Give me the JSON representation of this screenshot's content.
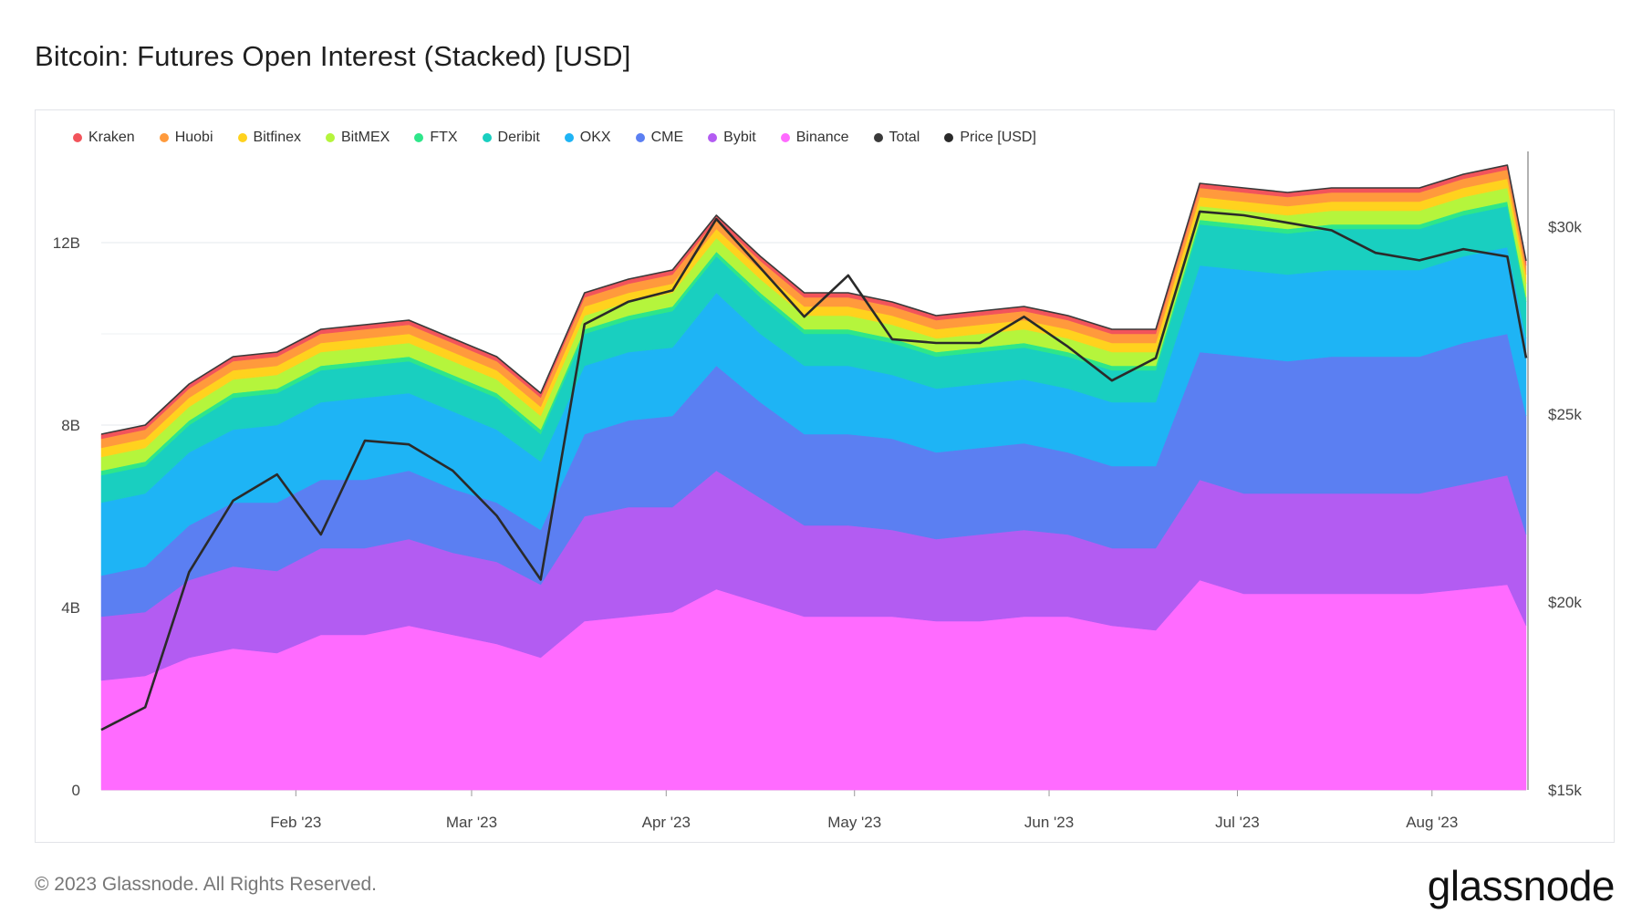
{
  "title": "Bitcoin: Futures Open Interest (Stacked) [USD]",
  "footer": {
    "copyright": "© 2023 Glassnode. All Rights Reserved.",
    "logo": "glassnode",
    "watermark": "glassnode"
  },
  "chart_data": {
    "type": "area",
    "stacked": true,
    "title": "Bitcoin: Futures Open Interest (Stacked) [USD]",
    "legend_position": "top-left",
    "grid": true,
    "x_start": "2023-01-01",
    "x_end": "2023-08-16",
    "x_tick_labels": [
      "Feb '23",
      "Mar '23",
      "Apr '23",
      "May '23",
      "Jun '23",
      "Jul '23",
      "Aug '23"
    ],
    "y_left": {
      "ylim": [
        0,
        14
      ],
      "unit": "B",
      "ticks": [
        0,
        4,
        8,
        12
      ],
      "tick_labels": [
        "0",
        "4B",
        "8B",
        "12B"
      ]
    },
    "y_right": {
      "ylim": [
        15000,
        32000
      ],
      "ticks": [
        15000,
        20000,
        25000,
        30000
      ],
      "tick_labels": [
        "$15k",
        "$20k",
        "$25k",
        "$30k"
      ]
    },
    "dates": [
      "2023-01-01",
      "2023-01-08",
      "2023-01-15",
      "2023-01-22",
      "2023-01-29",
      "2023-02-05",
      "2023-02-12",
      "2023-02-19",
      "2023-02-26",
      "2023-03-05",
      "2023-03-12",
      "2023-03-19",
      "2023-03-26",
      "2023-04-02",
      "2023-04-09",
      "2023-04-16",
      "2023-04-23",
      "2023-04-30",
      "2023-05-07",
      "2023-05-14",
      "2023-05-21",
      "2023-05-28",
      "2023-06-04",
      "2023-06-11",
      "2023-06-18",
      "2023-06-25",
      "2023-07-02",
      "2023-07-09",
      "2023-07-16",
      "2023-07-23",
      "2023-07-30",
      "2023-08-06",
      "2023-08-13",
      "2023-08-16"
    ],
    "series": [
      {
        "name": "Binance",
        "color": "#ff6bff",
        "values": [
          2.4,
          2.5,
          2.9,
          3.1,
          3.0,
          3.4,
          3.4,
          3.6,
          3.4,
          3.2,
          2.9,
          3.7,
          3.8,
          3.9,
          4.4,
          4.1,
          3.8,
          3.8,
          3.8,
          3.7,
          3.7,
          3.8,
          3.8,
          3.6,
          3.5,
          4.6,
          4.3,
          4.3,
          4.3,
          4.3,
          4.3,
          4.4,
          4.5,
          3.6
        ]
      },
      {
        "name": "Bybit",
        "color": "#b35cf2",
        "values": [
          1.4,
          1.4,
          1.7,
          1.8,
          1.8,
          1.9,
          1.9,
          1.9,
          1.8,
          1.8,
          1.6,
          2.3,
          2.4,
          2.3,
          2.6,
          2.3,
          2.0,
          2.0,
          1.9,
          1.8,
          1.9,
          1.9,
          1.8,
          1.7,
          1.8,
          2.2,
          2.2,
          2.2,
          2.2,
          2.2,
          2.2,
          2.3,
          2.4,
          2.0
        ]
      },
      {
        "name": "CME",
        "color": "#5b7ff2",
        "values": [
          0.9,
          1.0,
          1.2,
          1.4,
          1.5,
          1.5,
          1.5,
          1.5,
          1.4,
          1.3,
          1.2,
          1.8,
          1.9,
          2.0,
          2.3,
          2.1,
          2.0,
          2.0,
          2.0,
          1.9,
          1.9,
          1.9,
          1.8,
          1.8,
          1.8,
          2.8,
          3.0,
          2.9,
          3.0,
          3.0,
          3.0,
          3.1,
          3.1,
          2.6
        ]
      },
      {
        "name": "OKX",
        "color": "#1eb4f5",
        "values": [
          1.6,
          1.6,
          1.6,
          1.6,
          1.7,
          1.7,
          1.8,
          1.7,
          1.7,
          1.6,
          1.5,
          1.5,
          1.5,
          1.5,
          1.6,
          1.5,
          1.5,
          1.5,
          1.4,
          1.4,
          1.4,
          1.4,
          1.4,
          1.4,
          1.4,
          1.9,
          1.9,
          1.9,
          1.9,
          1.9,
          1.9,
          1.9,
          1.9,
          1.7
        ]
      },
      {
        "name": "Deribit",
        "color": "#19cfc0",
        "values": [
          0.6,
          0.6,
          0.6,
          0.7,
          0.7,
          0.7,
          0.7,
          0.7,
          0.7,
          0.7,
          0.6,
          0.7,
          0.7,
          0.8,
          0.8,
          0.8,
          0.7,
          0.7,
          0.7,
          0.7,
          0.7,
          0.7,
          0.7,
          0.7,
          0.7,
          0.9,
          0.9,
          0.9,
          0.9,
          0.9,
          0.9,
          0.9,
          0.9,
          0.8
        ]
      },
      {
        "name": "FTX",
        "color": "#2ee68a",
        "values": [
          0.1,
          0.1,
          0.1,
          0.1,
          0.1,
          0.1,
          0.1,
          0.1,
          0.1,
          0.1,
          0.1,
          0.1,
          0.1,
          0.1,
          0.1,
          0.1,
          0.1,
          0.1,
          0.1,
          0.1,
          0.1,
          0.1,
          0.1,
          0.1,
          0.1,
          0.1,
          0.1,
          0.1,
          0.1,
          0.1,
          0.1,
          0.1,
          0.1,
          0.1
        ]
      },
      {
        "name": "BitMEX",
        "color": "#b5f53c",
        "values": [
          0.3,
          0.3,
          0.3,
          0.3,
          0.3,
          0.3,
          0.3,
          0.3,
          0.3,
          0.3,
          0.3,
          0.3,
          0.3,
          0.3,
          0.3,
          0.3,
          0.3,
          0.3,
          0.3,
          0.3,
          0.3,
          0.3,
          0.3,
          0.3,
          0.3,
          0.3,
          0.3,
          0.3,
          0.3,
          0.3,
          0.3,
          0.3,
          0.3,
          0.3
        ]
      },
      {
        "name": "Bitfinex",
        "color": "#ffd21e",
        "values": [
          0.2,
          0.2,
          0.2,
          0.2,
          0.2,
          0.2,
          0.2,
          0.2,
          0.2,
          0.2,
          0.2,
          0.2,
          0.2,
          0.2,
          0.2,
          0.2,
          0.2,
          0.2,
          0.2,
          0.2,
          0.2,
          0.2,
          0.2,
          0.2,
          0.2,
          0.2,
          0.2,
          0.2,
          0.2,
          0.2,
          0.2,
          0.2,
          0.2,
          0.2
        ]
      },
      {
        "name": "Huobi",
        "color": "#ff9a3c",
        "values": [
          0.2,
          0.2,
          0.2,
          0.2,
          0.2,
          0.2,
          0.2,
          0.2,
          0.2,
          0.2,
          0.2,
          0.2,
          0.2,
          0.2,
          0.2,
          0.2,
          0.2,
          0.2,
          0.2,
          0.2,
          0.2,
          0.2,
          0.2,
          0.2,
          0.2,
          0.2,
          0.2,
          0.2,
          0.2,
          0.2,
          0.2,
          0.2,
          0.2,
          0.2
        ]
      },
      {
        "name": "Kraken",
        "color": "#f2545b",
        "values": [
          0.1,
          0.1,
          0.1,
          0.1,
          0.1,
          0.1,
          0.1,
          0.1,
          0.1,
          0.1,
          0.1,
          0.1,
          0.1,
          0.1,
          0.1,
          0.1,
          0.1,
          0.1,
          0.1,
          0.1,
          0.1,
          0.1,
          0.1,
          0.1,
          0.1,
          0.1,
          0.1,
          0.1,
          0.1,
          0.1,
          0.1,
          0.1,
          0.1,
          0.1
        ]
      }
    ],
    "total": {
      "name": "Total",
      "color": "#3a3a3a"
    },
    "price": {
      "name": "Price [USD]",
      "color": "#2a2a2a",
      "axis": "right",
      "values": [
        16600,
        17200,
        20800,
        22700,
        23400,
        21800,
        24300,
        24200,
        23500,
        22300,
        20600,
        27400,
        28000,
        28300,
        30200,
        28900,
        27600,
        28700,
        27000,
        26900,
        26900,
        27600,
        26800,
        25900,
        26500,
        30400,
        30300,
        30100,
        29900,
        29300,
        29100,
        29400,
        29200,
        26500
      ]
    }
  }
}
